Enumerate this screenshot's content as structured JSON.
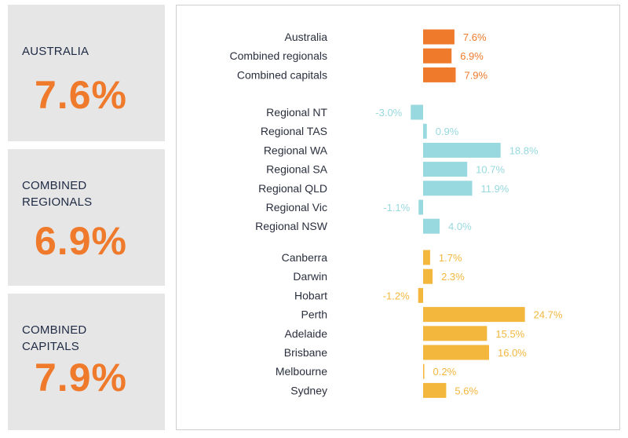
{
  "cards": [
    {
      "label_line1": "AUSTRALIA",
      "label_line2": "",
      "value": "7.6%"
    },
    {
      "label_line1": "COMBINED",
      "label_line2": "REGIONALS",
      "value": "6.9%"
    },
    {
      "label_line1": "COMBINED",
      "label_line2": "CAPITALS",
      "value": "7.9%"
    }
  ],
  "colors": {
    "summary": "#ef7a2b",
    "regional": "#97d9de",
    "capital": "#f3b73d",
    "card_bg": "#e6e6e6",
    "card_value": "#ef7a2b"
  },
  "chart_data": {
    "type": "bar",
    "orientation": "horizontal",
    "groups": [
      {
        "group": "summary",
        "categories": [
          "Australia",
          "Combined regionals",
          "Combined capitals"
        ],
        "values": [
          7.6,
          6.9,
          7.9
        ],
        "labels": [
          "7.6%",
          "6.9%",
          "7.9%"
        ]
      },
      {
        "group": "regional",
        "categories": [
          "Regional NT",
          "Regional TAS",
          "Regional WA",
          "Regional SA",
          "Regional QLD",
          "Regional Vic",
          "Regional NSW"
        ],
        "values": [
          -3.0,
          0.9,
          18.8,
          10.7,
          11.9,
          -1.1,
          4.0
        ],
        "labels": [
          "-3.0%",
          "0.9%",
          "18.8%",
          "10.7%",
          "11.9%",
          "-1.1%",
          "4.0%"
        ]
      },
      {
        "group": "capital",
        "categories": [
          "Canberra",
          "Darwin",
          "Hobart",
          "Perth",
          "Adelaide",
          "Brisbane",
          "Melbourne",
          "Sydney"
        ],
        "values": [
          1.7,
          2.3,
          -1.2,
          24.7,
          15.5,
          16.0,
          0.2,
          5.6
        ],
        "labels": [
          "1.7%",
          "2.3%",
          "-1.2%",
          "24.7%",
          "15.5%",
          "16.0%",
          "0.2%",
          "5.6%"
        ]
      }
    ],
    "xlim": [
      -3,
      25
    ],
    "grid": false,
    "legend": false
  }
}
